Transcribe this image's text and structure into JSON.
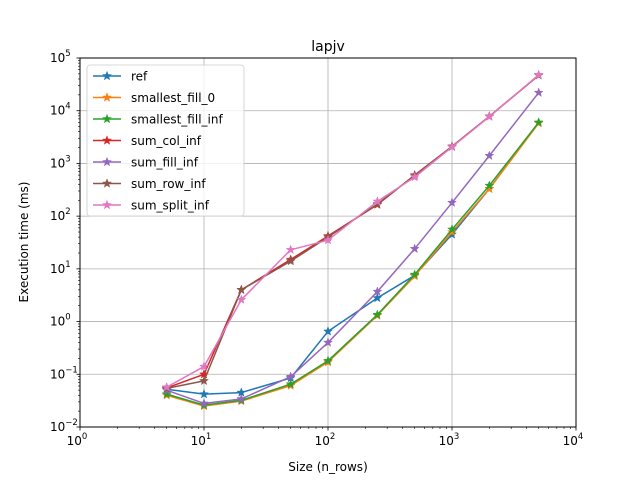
{
  "chart_data": {
    "type": "line",
    "title": "lapjv",
    "xlabel": "Size (n_rows)",
    "ylabel": "Execution time (ms)",
    "x_scale": "log",
    "y_scale": "log",
    "xlim": [
      1,
      10000
    ],
    "ylim": [
      0.01,
      100000
    ],
    "x_ticks": [
      {
        "value": 1,
        "base": "10",
        "exp": "0"
      },
      {
        "value": 10,
        "base": "10",
        "exp": "1"
      },
      {
        "value": 100,
        "base": "10",
        "exp": "2"
      },
      {
        "value": 1000,
        "base": "10",
        "exp": "3"
      },
      {
        "value": 10000,
        "base": "10",
        "exp": "4"
      }
    ],
    "y_ticks": [
      {
        "value": 0.01,
        "base": "10",
        "exp": "−2"
      },
      {
        "value": 0.1,
        "base": "10",
        "exp": "−1"
      },
      {
        "value": 1,
        "base": "10",
        "exp": "0"
      },
      {
        "value": 10,
        "base": "10",
        "exp": "1"
      },
      {
        "value": 100,
        "base": "10",
        "exp": "2"
      },
      {
        "value": 1000,
        "base": "10",
        "exp": "3"
      },
      {
        "value": 10000,
        "base": "10",
        "exp": "4"
      },
      {
        "value": 100000,
        "base": "10",
        "exp": "5"
      }
    ],
    "grid": true,
    "legend_position": "top-left",
    "marker": "star",
    "x": [
      5,
      10,
      20,
      50,
      100,
      250,
      500,
      1000,
      2000,
      5000
    ],
    "series": [
      {
        "name": "ref",
        "color": "#1f77b4",
        "values": [
          0.052,
          0.042,
          0.045,
          0.085,
          0.65,
          2.8,
          7.5,
          45,
          330,
          5900
        ]
      },
      {
        "name": "smallest_fill_0",
        "color": "#ff7f0e",
        "values": [
          0.04,
          0.025,
          0.031,
          0.061,
          0.17,
          1.3,
          7.3,
          50,
          330,
          5800
        ]
      },
      {
        "name": "smallest_fill_inf",
        "color": "#2ca02c",
        "values": [
          0.042,
          0.026,
          0.032,
          0.065,
          0.18,
          1.35,
          7.8,
          56,
          380,
          6000
        ]
      },
      {
        "name": "sum_col_inf",
        "color": "#d62728",
        "values": [
          0.055,
          0.1,
          4.0,
          15,
          42,
          165,
          600,
          2100,
          7800,
          47000
        ]
      },
      {
        "name": "sum_fill_inf",
        "color": "#9467bd",
        "values": [
          0.05,
          0.028,
          0.034,
          0.09,
          0.4,
          3.7,
          24,
          180,
          1400,
          22000
        ]
      },
      {
        "name": "sum_row_inf",
        "color": "#8c564b",
        "values": [
          0.054,
          0.075,
          4.0,
          14,
          40,
          170,
          590,
          2100,
          7800,
          47000
        ]
      },
      {
        "name": "sum_split_inf",
        "color": "#e377c2",
        "values": [
          0.057,
          0.14,
          2.6,
          23,
          35,
          190,
          550,
          2050,
          7700,
          48000
        ]
      }
    ]
  }
}
